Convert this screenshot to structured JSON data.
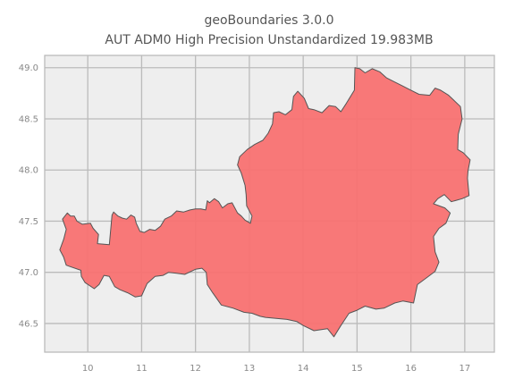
{
  "chart_data": {
    "type": "map",
    "title": "geoBoundaries 3.0.0",
    "subtitle": "AUT ADM0 High Precision Unstandardized 19.983MB",
    "x_ticks": [
      "10",
      "11",
      "12",
      "13",
      "14",
      "15",
      "16",
      "17"
    ],
    "y_ticks": [
      "49.0",
      "48.5",
      "48.0",
      "47.5",
      "47.0",
      "46.5"
    ],
    "xlim": [
      9.2,
      17.55
    ],
    "ylim": [
      46.22,
      49.12
    ],
    "grid": true,
    "colors": {
      "fill": "#f87171",
      "edge": "#555555",
      "plot_background": "#eeeeee",
      "grid": "#bbbbbb"
    },
    "region": {
      "name": "AUT",
      "outline": [
        [
          9.53,
          47.52
        ],
        [
          9.62,
          47.58
        ],
        [
          9.68,
          47.55
        ],
        [
          9.75,
          47.55
        ],
        [
          9.8,
          47.5
        ],
        [
          9.9,
          47.47
        ],
        [
          10.05,
          47.48
        ],
        [
          10.1,
          47.43
        ],
        [
          10.2,
          47.37
        ],
        [
          10.18,
          47.28
        ],
        [
          10.4,
          47.27
        ],
        [
          10.45,
          47.56
        ],
        [
          10.48,
          47.59
        ],
        [
          10.56,
          47.55
        ],
        [
          10.64,
          47.53
        ],
        [
          10.72,
          47.52
        ],
        [
          10.8,
          47.56
        ],
        [
          10.87,
          47.54
        ],
        [
          10.9,
          47.48
        ],
        [
          10.97,
          47.4
        ],
        [
          11.05,
          47.39
        ],
        [
          11.15,
          47.42
        ],
        [
          11.25,
          47.41
        ],
        [
          11.35,
          47.45
        ],
        [
          11.43,
          47.52
        ],
        [
          11.55,
          47.55
        ],
        [
          11.65,
          47.6
        ],
        [
          11.78,
          47.59
        ],
        [
          11.9,
          47.61
        ],
        [
          12.0,
          47.62
        ],
        [
          12.1,
          47.62
        ],
        [
          12.19,
          47.61
        ],
        [
          12.22,
          47.7
        ],
        [
          12.26,
          47.68
        ],
        [
          12.35,
          47.72
        ],
        [
          12.43,
          47.69
        ],
        [
          12.5,
          47.63
        ],
        [
          12.6,
          47.67
        ],
        [
          12.68,
          47.68
        ],
        [
          12.78,
          47.58
        ],
        [
          12.85,
          47.55
        ],
        [
          12.92,
          47.51
        ],
        [
          13.02,
          47.48
        ],
        [
          13.05,
          47.55
        ],
        [
          12.95,
          47.65
        ],
        [
          12.94,
          47.76
        ],
        [
          12.92,
          47.85
        ],
        [
          12.85,
          47.97
        ],
        [
          12.78,
          48.05
        ],
        [
          12.82,
          48.13
        ],
        [
          12.96,
          48.2
        ],
        [
          13.1,
          48.25
        ],
        [
          13.25,
          48.29
        ],
        [
          13.35,
          48.36
        ],
        [
          13.43,
          48.45
        ],
        [
          13.45,
          48.56
        ],
        [
          13.55,
          48.57
        ],
        [
          13.67,
          48.54
        ],
        [
          13.79,
          48.59
        ],
        [
          13.82,
          48.72
        ],
        [
          13.9,
          48.77
        ],
        [
          14.02,
          48.7
        ],
        [
          14.1,
          48.6
        ],
        [
          14.2,
          48.59
        ],
        [
          14.35,
          48.56
        ],
        [
          14.48,
          48.63
        ],
        [
          14.6,
          48.62
        ],
        [
          14.7,
          48.57
        ],
        [
          14.8,
          48.65
        ],
        [
          14.95,
          48.78
        ],
        [
          14.96,
          49.0
        ],
        [
          15.05,
          48.99
        ],
        [
          15.15,
          48.95
        ],
        [
          15.28,
          48.99
        ],
        [
          15.42,
          48.96
        ],
        [
          15.55,
          48.9
        ],
        [
          15.7,
          48.86
        ],
        [
          15.85,
          48.82
        ],
        [
          16.0,
          48.78
        ],
        [
          16.15,
          48.74
        ],
        [
          16.35,
          48.73
        ],
        [
          16.45,
          48.8
        ],
        [
          16.55,
          48.78
        ],
        [
          16.7,
          48.73
        ],
        [
          16.92,
          48.62
        ],
        [
          16.95,
          48.5
        ],
        [
          16.88,
          48.35
        ],
        [
          16.87,
          48.2
        ],
        [
          16.97,
          48.17
        ],
        [
          17.1,
          48.1
        ],
        [
          17.06,
          47.99
        ],
        [
          17.05,
          47.92
        ],
        [
          17.08,
          47.75
        ],
        [
          16.95,
          47.72
        ],
        [
          16.75,
          47.69
        ],
        [
          16.62,
          47.76
        ],
        [
          16.5,
          47.72
        ],
        [
          16.42,
          47.67
        ],
        [
          16.63,
          47.63
        ],
        [
          16.73,
          47.58
        ],
        [
          16.65,
          47.48
        ],
        [
          16.52,
          47.43
        ],
        [
          16.42,
          47.35
        ],
        [
          16.45,
          47.2
        ],
        [
          16.52,
          47.1
        ],
        [
          16.45,
          47.01
        ],
        [
          16.3,
          46.95
        ],
        [
          16.12,
          46.88
        ],
        [
          16.05,
          46.7
        ],
        [
          15.85,
          46.72
        ],
        [
          15.7,
          46.7
        ],
        [
          15.5,
          46.65
        ],
        [
          15.35,
          46.64
        ],
        [
          15.15,
          46.67
        ],
        [
          15.0,
          46.63
        ],
        [
          14.85,
          46.6
        ],
        [
          14.7,
          46.48
        ],
        [
          14.57,
          46.37
        ],
        [
          14.45,
          46.45
        ],
        [
          14.2,
          46.43
        ],
        [
          14.0,
          46.48
        ],
        [
          13.88,
          46.52
        ],
        [
          13.7,
          46.54
        ],
        [
          13.5,
          46.55
        ],
        [
          13.3,
          46.56
        ],
        [
          13.2,
          46.57
        ],
        [
          13.05,
          46.6
        ],
        [
          12.9,
          46.61
        ],
        [
          12.7,
          46.65
        ],
        [
          12.48,
          46.68
        ],
        [
          12.32,
          46.8
        ],
        [
          12.22,
          46.88
        ],
        [
          12.2,
          47.0
        ],
        [
          12.12,
          47.04
        ],
        [
          12.0,
          47.03
        ],
        [
          11.8,
          46.98
        ],
        [
          11.65,
          46.99
        ],
        [
          11.5,
          47.0
        ],
        [
          11.4,
          46.97
        ],
        [
          11.25,
          46.96
        ],
        [
          11.1,
          46.89
        ],
        [
          11.0,
          46.77
        ],
        [
          10.88,
          46.76
        ],
        [
          10.74,
          46.8
        ],
        [
          10.6,
          46.83
        ],
        [
          10.5,
          46.86
        ],
        [
          10.4,
          46.96
        ],
        [
          10.3,
          46.97
        ],
        [
          10.21,
          46.88
        ],
        [
          10.12,
          46.84
        ],
        [
          9.95,
          46.9
        ],
        [
          9.88,
          46.96
        ],
        [
          9.87,
          47.02
        ],
        [
          9.65,
          47.06
        ],
        [
          9.6,
          47.07
        ],
        [
          9.55,
          47.15
        ],
        [
          9.48,
          47.22
        ],
        [
          9.55,
          47.32
        ],
        [
          9.6,
          47.42
        ],
        [
          9.53,
          47.52
        ]
      ]
    }
  }
}
